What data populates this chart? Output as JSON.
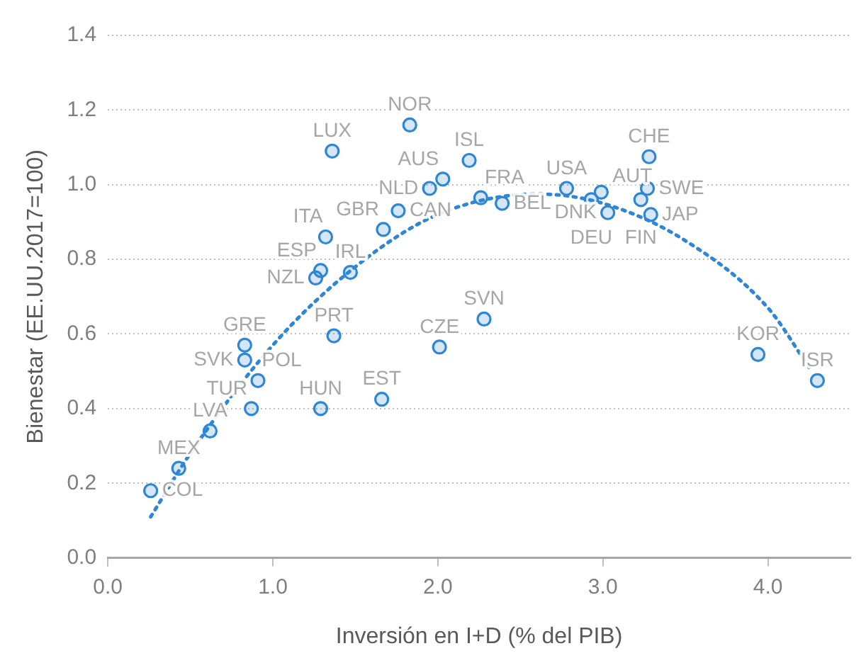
{
  "chart_data": {
    "type": "scatter",
    "xlabel": "Inversión en I+D (% del PIB)",
    "ylabel": "Bienestar (EE.UU.2017=100)",
    "xlim": [
      0,
      4.5
    ],
    "ylim": [
      0,
      1.4
    ],
    "xticks": [
      {
        "value": 0,
        "label": "0.0"
      },
      {
        "value": 1,
        "label": "1.0"
      },
      {
        "value": 2,
        "label": "2.0"
      },
      {
        "value": 3,
        "label": "3.0"
      },
      {
        "value": 4,
        "label": "4.0"
      }
    ],
    "yticks": [
      {
        "value": 0,
        "label": "0.0"
      },
      {
        "value": 0.2,
        "label": "0.2"
      },
      {
        "value": 0.4,
        "label": "0.4"
      },
      {
        "value": 0.6,
        "label": "0.6"
      },
      {
        "value": 0.8,
        "label": "0.8"
      },
      {
        "value": 1,
        "label": "1.0"
      },
      {
        "value": 1.2,
        "label": "1.2"
      },
      {
        "value": 1.4,
        "label": "1.4"
      }
    ],
    "grid": "y",
    "legend": false,
    "marker": "circle",
    "series": [
      {
        "type": "scatter",
        "color": "#2e86d4",
        "x": [
          0.26,
          0.43,
          0.62,
          0.87,
          0.91,
          0.83,
          0.83,
          1.29,
          1.66,
          1.36,
          1.83,
          2.19,
          2.03,
          1.95,
          2.26,
          2.39,
          1.76,
          1.67,
          1.32,
          1.29,
          1.26,
          1.47,
          2.28,
          1.37,
          2.01,
          2.78,
          2.93,
          2.99,
          3.03,
          3.23,
          3.27,
          3.28,
          3.29,
          3.94,
          4.3
        ],
        "values": [
          0.18,
          0.24,
          0.34,
          0.4,
          0.475,
          0.57,
          0.53,
          0.4,
          0.425,
          1.09,
          1.16,
          1.065,
          1.015,
          0.99,
          0.965,
          0.95,
          0.93,
          0.88,
          0.86,
          0.77,
          0.75,
          0.765,
          0.64,
          0.595,
          0.565,
          0.99,
          0.96,
          0.98,
          0.925,
          0.96,
          0.99,
          1.075,
          0.92,
          0.545,
          0.475
        ]
      },
      {
        "type": "line",
        "color": "#2e86d4",
        "line_style": "dotted",
        "marker": "none",
        "x": [
          0.26,
          0.5,
          1.0,
          1.5,
          2.0,
          2.6,
          3.0,
          3.5,
          4.0,
          4.25
        ],
        "values": [
          0.11,
          0.28,
          0.57,
          0.78,
          0.92,
          0.975,
          0.95,
          0.85,
          0.67,
          0.51
        ]
      }
    ],
    "annotations": [
      {
        "text": "COL",
        "x": 0.26,
        "y": 0.18
      },
      {
        "text": "MEX",
        "x": 0.43,
        "y": 0.24
      },
      {
        "text": "LVA",
        "x": 0.62,
        "y": 0.34
      },
      {
        "text": "TUR",
        "x": 0.87,
        "y": 0.4
      },
      {
        "text": "POL",
        "x": 0.91,
        "y": 0.475
      },
      {
        "text": "GRE",
        "x": 0.83,
        "y": 0.57
      },
      {
        "text": "SVK",
        "x": 0.83,
        "y": 0.53
      },
      {
        "text": "HUN",
        "x": 1.29,
        "y": 0.4
      },
      {
        "text": "EST",
        "x": 1.66,
        "y": 0.425
      },
      {
        "text": "LUX",
        "x": 1.36,
        "y": 1.09
      },
      {
        "text": "NOR",
        "x": 1.83,
        "y": 1.16
      },
      {
        "text": "ISL",
        "x": 2.19,
        "y": 1.065
      },
      {
        "text": "AUS",
        "x": 2.03,
        "y": 1.015
      },
      {
        "text": "NLD",
        "x": 1.95,
        "y": 0.99
      },
      {
        "text": "FRA",
        "x": 2.26,
        "y": 0.965
      },
      {
        "text": "BEL",
        "x": 2.39,
        "y": 0.95
      },
      {
        "text": "CAN",
        "x": 1.76,
        "y": 0.93
      },
      {
        "text": "GBR",
        "x": 1.67,
        "y": 0.88
      },
      {
        "text": "ITA",
        "x": 1.32,
        "y": 0.86
      },
      {
        "text": "ESP",
        "x": 1.29,
        "y": 0.77
      },
      {
        "text": "NZL",
        "x": 1.26,
        "y": 0.75
      },
      {
        "text": "IRL",
        "x": 1.47,
        "y": 0.765
      },
      {
        "text": "SVN",
        "x": 2.28,
        "y": 0.64
      },
      {
        "text": "PRT",
        "x": 1.37,
        "y": 0.595
      },
      {
        "text": "CZE",
        "x": 2.01,
        "y": 0.565
      },
      {
        "text": "USA",
        "x": 2.78,
        "y": 0.99
      },
      {
        "text": "DEU",
        "x": 2.93,
        "y": 0.96
      },
      {
        "text": "AUT",
        "x": 2.99,
        "y": 0.98
      },
      {
        "text": "DNK",
        "x": 3.03,
        "y": 0.925
      },
      {
        "text": "FIN",
        "x": 3.23,
        "y": 0.96
      },
      {
        "text": "SWE",
        "x": 3.27,
        "y": 0.99
      },
      {
        "text": "CHE",
        "x": 3.28,
        "y": 1.075
      },
      {
        "text": "JAP",
        "x": 3.29,
        "y": 0.92
      },
      {
        "text": "KOR",
        "x": 3.94,
        "y": 0.545
      },
      {
        "text": "ISR",
        "x": 4.3,
        "y": 0.475
      }
    ]
  }
}
